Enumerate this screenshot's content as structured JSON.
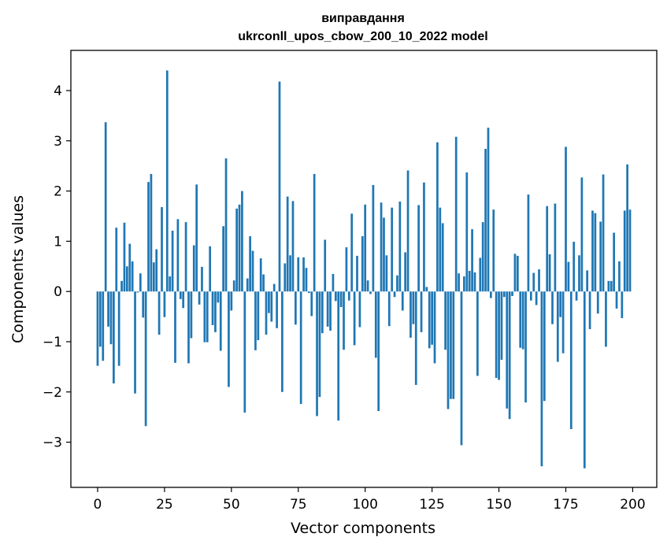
{
  "chart_data": {
    "type": "bar",
    "title_line1": "виправдання",
    "title_line2": "ukrconll_upos_cbow_200_10_2022 model",
    "xlabel": "Vector components",
    "ylabel": "Components values",
    "xlim": [
      -10,
      209
    ],
    "ylim": [
      -3.9,
      4.8
    ],
    "xticks": [
      0,
      25,
      50,
      75,
      100,
      125,
      150,
      175,
      200
    ],
    "yticks": [
      -3,
      -2,
      -1,
      0,
      1,
      2,
      3,
      4
    ],
    "bar_color": "#1f77b4",
    "x": [
      0,
      1,
      2,
      3,
      4,
      5,
      6,
      7,
      8,
      9,
      10,
      11,
      12,
      13,
      14,
      15,
      16,
      17,
      18,
      19,
      20,
      21,
      22,
      23,
      24,
      25,
      26,
      27,
      28,
      29,
      30,
      31,
      32,
      33,
      34,
      35,
      36,
      37,
      38,
      39,
      40,
      41,
      42,
      43,
      44,
      45,
      46,
      47,
      48,
      49,
      50,
      51,
      52,
      53,
      54,
      55,
      56,
      57,
      58,
      59,
      60,
      61,
      62,
      63,
      64,
      65,
      66,
      67,
      68,
      69,
      70,
      71,
      72,
      73,
      74,
      75,
      76,
      77,
      78,
      79,
      80,
      81,
      82,
      83,
      84,
      85,
      86,
      87,
      88,
      89,
      90,
      91,
      92,
      93,
      94,
      95,
      96,
      97,
      98,
      99,
      100,
      101,
      102,
      103,
      104,
      105,
      106,
      107,
      108,
      109,
      110,
      111,
      112,
      113,
      114,
      115,
      116,
      117,
      118,
      119,
      120,
      121,
      122,
      123,
      124,
      125,
      126,
      127,
      128,
      129,
      130,
      131,
      132,
      133,
      134,
      135,
      136,
      137,
      138,
      139,
      140,
      141,
      142,
      143,
      144,
      145,
      146,
      147,
      148,
      149,
      150,
      151,
      152,
      153,
      154,
      155,
      156,
      157,
      158,
      159,
      160,
      161,
      162,
      163,
      164,
      165,
      166,
      167,
      168,
      169,
      170,
      171,
      172,
      173,
      174,
      175,
      176,
      177,
      178,
      179,
      180,
      181,
      182,
      183,
      184,
      185,
      186,
      187,
      188,
      189,
      190,
      191,
      192,
      193,
      194,
      195,
      196,
      197,
      198,
      199
    ],
    "values": [
      -1.48,
      -1.1,
      -1.38,
      3.37,
      -0.7,
      -1.05,
      -1.83,
      1.27,
      -1.48,
      0.21,
      1.37,
      0.5,
      0.95,
      0.6,
      -2.03,
      -0.02,
      0.36,
      -0.52,
      -2.68,
      2.18,
      2.34,
      0.58,
      0.84,
      -0.86,
      1.68,
      -0.51,
      4.4,
      0.3,
      1.21,
      -1.42,
      1.44,
      -0.15,
      -0.33,
      1.38,
      -1.43,
      -0.93,
      0.92,
      2.13,
      -0.26,
      0.49,
      -1.01,
      -1.01,
      0.9,
      -0.67,
      -0.81,
      -0.22,
      -1.18,
      1.3,
      2.65,
      -1.9,
      -0.38,
      0.22,
      1.65,
      1.73,
      2.0,
      -2.41,
      0.26,
      1.1,
      0.81,
      -1.17,
      -0.97,
      0.66,
      0.34,
      -0.86,
      -0.43,
      -0.6,
      0.15,
      -0.73,
      4.18,
      -2.0,
      0.56,
      1.89,
      0.72,
      1.8,
      -0.66,
      0.68,
      -2.24,
      0.68,
      0.47,
      -0.03,
      -0.49,
      2.34,
      -2.48,
      -2.1,
      -0.83,
      1.03,
      -0.7,
      -0.78,
      0.35,
      -0.19,
      -2.57,
      -0.31,
      -1.16,
      0.88,
      -0.18,
      1.55,
      -1.07,
      0.71,
      -0.71,
      1.1,
      1.73,
      0.22,
      -0.05,
      2.12,
      -1.32,
      -2.38,
      1.77,
      1.47,
      0.72,
      -0.69,
      1.67,
      -0.11,
      0.32,
      1.79,
      -0.38,
      0.78,
      2.41,
      -0.92,
      -0.65,
      -1.86,
      1.72,
      -0.81,
      2.17,
      0.09,
      -1.13,
      -1.06,
      -1.43,
      2.97,
      1.67,
      1.36,
      -1.16,
      -2.34,
      -2.14,
      -2.14,
      3.08,
      0.36,
      -3.06,
      0.3,
      2.37,
      0.41,
      1.24,
      0.38,
      -1.68,
      0.67,
      1.38,
      2.84,
      3.26,
      -0.13,
      1.63,
      -1.72,
      -1.76,
      -1.36,
      -0.11,
      -2.33,
      -2.54,
      -0.09,
      0.75,
      0.71,
      -1.12,
      -1.15,
      -2.21,
      1.93,
      -0.18,
      0.37,
      -0.27,
      0.44,
      -3.48,
      -2.18,
      1.7,
      0.74,
      -0.65,
      1.75,
      -1.4,
      -0.51,
      -1.23,
      2.88,
      0.59,
      -2.74,
      0.99,
      -0.18,
      0.72,
      2.27,
      -3.52,
      0.42,
      -0.75,
      1.61,
      1.56,
      -0.44,
      1.39,
      2.33,
      -1.1,
      0.21,
      0.21,
      1.17,
      -0.34,
      0.6,
      -0.53,
      1.61,
      2.53,
      1.63
    ]
  }
}
